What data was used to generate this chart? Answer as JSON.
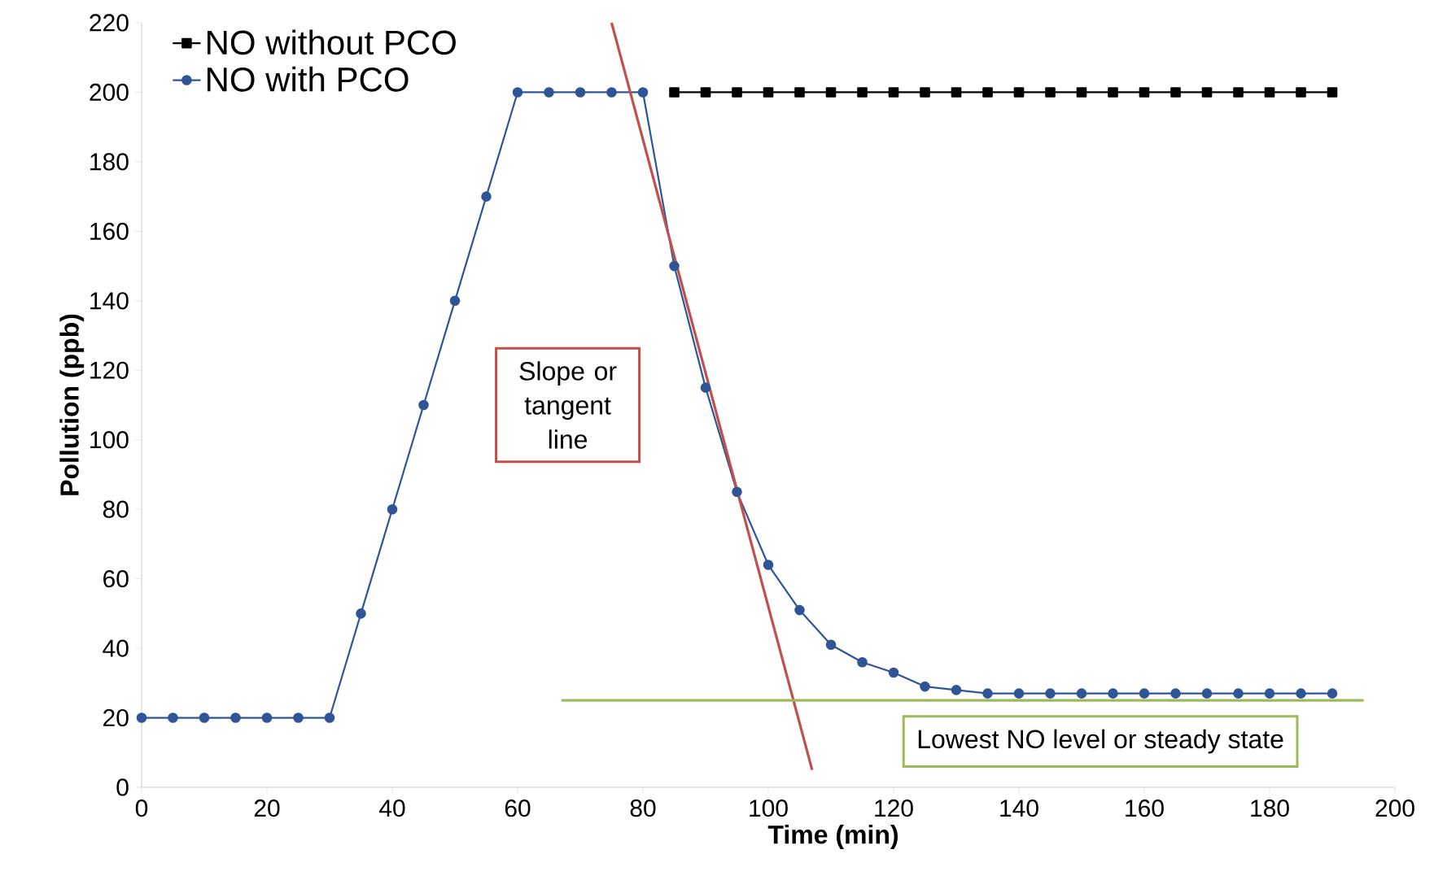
{
  "chart_data": {
    "type": "line",
    "xlabel": "Time (min)",
    "ylabel": "Pollution (ppb)",
    "x": [
      0,
      5,
      10,
      15,
      20,
      25,
      30,
      35,
      40,
      45,
      50,
      55,
      60,
      65,
      70,
      75,
      80,
      85,
      90,
      95,
      100,
      105,
      110,
      115,
      120,
      125,
      130,
      135,
      140,
      145,
      150,
      155,
      160,
      165,
      170,
      175,
      180,
      185,
      190
    ],
    "series": [
      {
        "name": "NO without PCO",
        "color": "#000000",
        "marker": "square",
        "values": [
          null,
          null,
          null,
          null,
          null,
          null,
          null,
          null,
          null,
          null,
          null,
          null,
          null,
          null,
          null,
          null,
          null,
          200,
          200,
          200,
          200,
          200,
          200,
          200,
          200,
          200,
          200,
          200,
          200,
          200,
          200,
          200,
          200,
          200,
          200,
          200,
          200,
          200,
          200
        ]
      },
      {
        "name": "NO with PCO",
        "color": "#2f5597",
        "marker": "circle",
        "values": [
          20,
          20,
          20,
          20,
          20,
          20,
          20,
          50,
          80,
          110,
          140,
          170,
          200,
          200,
          200,
          200,
          200,
          150,
          115,
          85,
          64,
          51,
          41,
          36,
          33,
          29,
          28,
          27,
          27,
          27,
          27,
          27,
          27,
          27,
          27,
          27,
          27,
          27,
          27
        ]
      },
      {
        "type": "line",
        "color": "#c0504d",
        "marker": "none",
        "x": [
          75,
          107
        ],
        "values": [
          220,
          5
        ]
      },
      {
        "type": "line",
        "color": "#9bbb59",
        "marker": "none",
        "x": [
          67,
          195
        ],
        "values": [
          25,
          25
        ]
      }
    ],
    "annotations": [
      "Slope or tangent line",
      "Lowest NO level or steady state"
    ],
    "xlim": [
      0,
      200
    ],
    "xticks": [
      0,
      20,
      40,
      60,
      80,
      100,
      120,
      140,
      160,
      180,
      200
    ],
    "ylim": [
      0,
      220
    ],
    "yticks": [
      0,
      20,
      40,
      60,
      80,
      100,
      120,
      140,
      160,
      180,
      200,
      220
    ],
    "grid": false,
    "legend": "top left"
  }
}
